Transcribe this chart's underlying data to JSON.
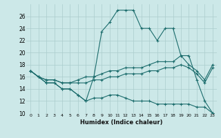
{
  "xlabel": "Humidex (Indice chaleur)",
  "bg_color": "#cce8e8",
  "grid_color": "#aacccc",
  "line_color": "#1a6b6b",
  "xlim": [
    -0.5,
    23.5
  ],
  "ylim": [
    10,
    28
  ],
  "yticks": [
    10,
    12,
    14,
    16,
    18,
    20,
    22,
    24,
    26
  ],
  "xticks": [
    0,
    1,
    2,
    3,
    4,
    5,
    6,
    7,
    8,
    9,
    10,
    11,
    12,
    13,
    14,
    15,
    16,
    17,
    18,
    19,
    20,
    21,
    22,
    23
  ],
  "lines": [
    {
      "x": [
        0,
        1,
        2,
        3,
        4,
        5,
        6,
        7,
        8,
        9,
        10,
        11,
        12,
        13,
        14,
        15,
        16,
        17,
        18,
        19,
        20,
        21,
        22,
        23
      ],
      "y": [
        17,
        16,
        15,
        15,
        14,
        14,
        13,
        12,
        16,
        23.5,
        25,
        27,
        27,
        27,
        24,
        24,
        22,
        24,
        24,
        19.5,
        19.5,
        15.5,
        12,
        10
      ]
    },
    {
      "x": [
        0,
        1,
        2,
        3,
        4,
        5,
        6,
        7,
        8,
        9,
        10,
        11,
        12,
        13,
        14,
        15,
        16,
        17,
        18,
        19,
        20,
        21,
        22,
        23
      ],
      "y": [
        17,
        16,
        15.5,
        15.5,
        15,
        15,
        15.5,
        16,
        16,
        16.5,
        17,
        17,
        17.5,
        17.5,
        17.5,
        18,
        18.5,
        18.5,
        18.5,
        19.5,
        18,
        17,
        15.5,
        18
      ]
    },
    {
      "x": [
        0,
        1,
        2,
        3,
        4,
        5,
        6,
        7,
        8,
        9,
        10,
        11,
        12,
        13,
        14,
        15,
        16,
        17,
        18,
        19,
        20,
        21,
        22,
        23
      ],
      "y": [
        17,
        16,
        15.5,
        15.5,
        15,
        15,
        15,
        15,
        15.5,
        15.5,
        16,
        16,
        16.5,
        16.5,
        16.5,
        17,
        17,
        17.5,
        17.5,
        18,
        17.5,
        16.5,
        15,
        17.5
      ]
    },
    {
      "x": [
        0,
        1,
        2,
        3,
        4,
        5,
        6,
        7,
        8,
        9,
        10,
        11,
        12,
        13,
        14,
        15,
        16,
        17,
        18,
        19,
        20,
        21,
        22,
        23
      ],
      "y": [
        17,
        16,
        15,
        15,
        14,
        14,
        13,
        12,
        12.5,
        12.5,
        13,
        13,
        12.5,
        12,
        12,
        12,
        11.5,
        11.5,
        11.5,
        11.5,
        11.5,
        11,
        11,
        10
      ]
    }
  ]
}
